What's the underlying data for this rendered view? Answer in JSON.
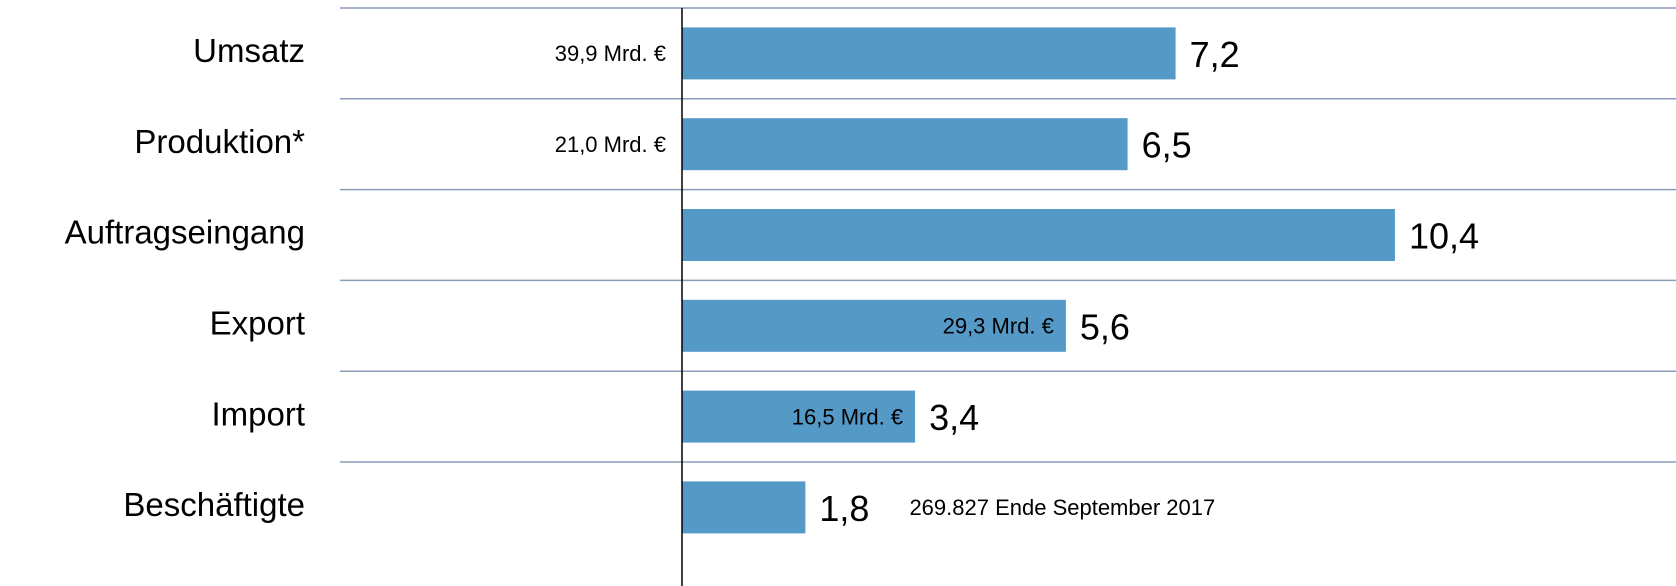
{
  "chart_data": {
    "type": "bar",
    "orientation": "horizontal",
    "categories": [
      "Umsatz",
      "Produktion*",
      "Auftragseingang",
      "Export",
      "Import",
      "Beschäftigte"
    ],
    "values": [
      7.2,
      6.5,
      10.4,
      5.6,
      3.4,
      1.8
    ],
    "value_labels": [
      "7,2",
      "6,5",
      "10,4",
      "5,6",
      "3,4",
      "1,8"
    ],
    "notes": [
      "39,9 Mrd. €",
      "21,0 Mrd. €",
      null,
      "29,3 Mrd. €",
      "16,5 Mrd. €",
      "269.827 Ende September 2017"
    ],
    "color": "#5599c7",
    "xlim": [
      0,
      14.5
    ]
  }
}
